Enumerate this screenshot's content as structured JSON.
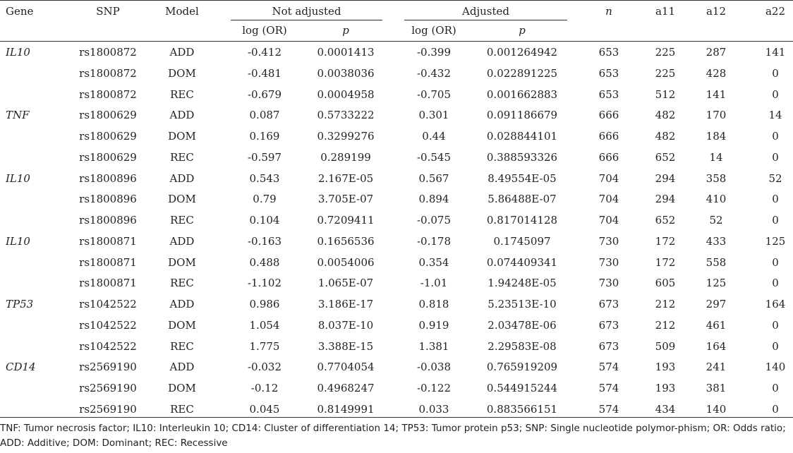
{
  "header": {
    "gene": "Gene",
    "snp": "SNP",
    "model": "Model",
    "not_adjusted": "Not adjusted",
    "adjusted": "Adjusted",
    "log_or_1": "log (OR)",
    "p_1": "p",
    "log_or_2": "log (OR)",
    "p_2": "p",
    "n": "n",
    "a11": "a11",
    "a12": "a12",
    "a22": "a22"
  },
  "rows": [
    {
      "gene": "IL10",
      "snp": "rs1800872",
      "model": "ADD",
      "log_or_na": "-0.412",
      "p_na": "0.0001413",
      "log_or_adj": "-0.399",
      "p_adj": "0.001264942",
      "n": "653",
      "a11": "225",
      "a12": "287",
      "a22": "141"
    },
    {
      "gene": "",
      "snp": "rs1800872",
      "model": "DOM",
      "log_or_na": "-0.481",
      "p_na": "0.0038036",
      "log_or_adj": "-0.432",
      "p_adj": "0.022891225",
      "n": "653",
      "a11": "225",
      "a12": "428",
      "a22": "0"
    },
    {
      "gene": "",
      "snp": "rs1800872",
      "model": "REC",
      "log_or_na": "-0.679",
      "p_na": "0.0004958",
      "log_or_adj": "-0.705",
      "p_adj": "0.001662883",
      "n": "653",
      "a11": "512",
      "a12": "141",
      "a22": "0"
    },
    {
      "gene": "TNF",
      "snp": "rs1800629",
      "model": "ADD",
      "log_or_na": "0.087",
      "p_na": "0.5733222",
      "log_or_adj": "0.301",
      "p_adj": "0.091186679",
      "n": "666",
      "a11": "482",
      "a12": "170",
      "a22": "14"
    },
    {
      "gene": "",
      "snp": "rs1800629",
      "model": "DOM",
      "log_or_na": "0.169",
      "p_na": "0.3299276",
      "log_or_adj": "0.44",
      "p_adj": "0.028844101",
      "n": "666",
      "a11": "482",
      "a12": "184",
      "a22": "0"
    },
    {
      "gene": "",
      "snp": "rs1800629",
      "model": "REC",
      "log_or_na": "-0.597",
      "p_na": "0.289199",
      "log_or_adj": "-0.545",
      "p_adj": "0.388593326",
      "n": "666",
      "a11": "652",
      "a12": "14",
      "a22": "0"
    },
    {
      "gene": "IL10",
      "snp": "rs1800896",
      "model": "ADD",
      "log_or_na": "0.543",
      "p_na": "2.167E-05",
      "log_or_adj": "0.567",
      "p_adj": "8.49554E-05",
      "n": "704",
      "a11": "294",
      "a12": "358",
      "a22": "52"
    },
    {
      "gene": "",
      "snp": "rs1800896",
      "model": "DOM",
      "log_or_na": "0.79",
      "p_na": "3.705E-07",
      "log_or_adj": "0.894",
      "p_adj": "5.86488E-07",
      "n": "704",
      "a11": "294",
      "a12": "410",
      "a22": "0"
    },
    {
      "gene": "",
      "snp": "rs1800896",
      "model": "REC",
      "log_or_na": "0.104",
      "p_na": "0.7209411",
      "log_or_adj": "-0.075",
      "p_adj": "0.817014128",
      "n": "704",
      "a11": "652",
      "a12": "52",
      "a22": "0"
    },
    {
      "gene": "IL10",
      "snp": "rs1800871",
      "model": "ADD",
      "log_or_na": "-0.163",
      "p_na": "0.1656536",
      "log_or_adj": "-0.178",
      "p_adj": "0.1745097",
      "n": "730",
      "a11": "172",
      "a12": "433",
      "a22": "125"
    },
    {
      "gene": "",
      "snp": "rs1800871",
      "model": "DOM",
      "log_or_na": "0.488",
      "p_na": "0.0054006",
      "log_or_adj": "0.354",
      "p_adj": "0.074409341",
      "n": "730",
      "a11": "172",
      "a12": "558",
      "a22": "0"
    },
    {
      "gene": "",
      "snp": "rs1800871",
      "model": "REC",
      "log_or_na": "-1.102",
      "p_na": "1.065E-07",
      "log_or_adj": "-1.01",
      "p_adj": "1.94248E-05",
      "n": "730",
      "a11": "605",
      "a12": "125",
      "a22": "0"
    },
    {
      "gene": "TP53",
      "snp": "rs1042522",
      "model": "ADD",
      "log_or_na": "0.986",
      "p_na": "3.186E-17",
      "log_or_adj": "0.818",
      "p_adj": "5.23513E-10",
      "n": "673",
      "a11": "212",
      "a12": "297",
      "a22": "164"
    },
    {
      "gene": "",
      "snp": "rs1042522",
      "model": "DOM",
      "log_or_na": "1.054",
      "p_na": "8.037E-10",
      "log_or_adj": "0.919",
      "p_adj": "2.03478E-06",
      "n": "673",
      "a11": "212",
      "a12": "461",
      "a22": "0"
    },
    {
      "gene": "",
      "snp": "rs1042522",
      "model": "REC",
      "log_or_na": "1.775",
      "p_na": "3.388E-15",
      "log_or_adj": "1.381",
      "p_adj": "2.29583E-08",
      "n": "673",
      "a11": "509",
      "a12": "164",
      "a22": "0"
    },
    {
      "gene": "CD14",
      "snp": "rs2569190",
      "model": "ADD",
      "log_or_na": "-0.032",
      "p_na": "0.7704054",
      "log_or_adj": "-0.038",
      "p_adj": "0.765919209",
      "n": "574",
      "a11": "193",
      "a12": "241",
      "a22": "140"
    },
    {
      "gene": "",
      "snp": "rs2569190",
      "model": "DOM",
      "log_or_na": "-0.12",
      "p_na": "0.4968247",
      "log_or_adj": "-0.122",
      "p_adj": "0.544915244",
      "n": "574",
      "a11": "193",
      "a12": "381",
      "a22": "0"
    },
    {
      "gene": "",
      "snp": "rs2569190",
      "model": "REC",
      "log_or_na": "0.045",
      "p_na": "0.8149991",
      "log_or_adj": "0.033",
      "p_adj": "0.883566151",
      "n": "574",
      "a11": "434",
      "a12": "140",
      "a22": "0"
    }
  ],
  "footnote": "TNF: Tumor necrosis factor; IL10: Interleukin 10; CD14: Cluster of differentiation 14; TP53: Tumor protein p53; SNP: Single nucleotide polymor-phism; OR: Odds ratio; ADD: Additive; DOM: Dominant; REC: Recessive"
}
